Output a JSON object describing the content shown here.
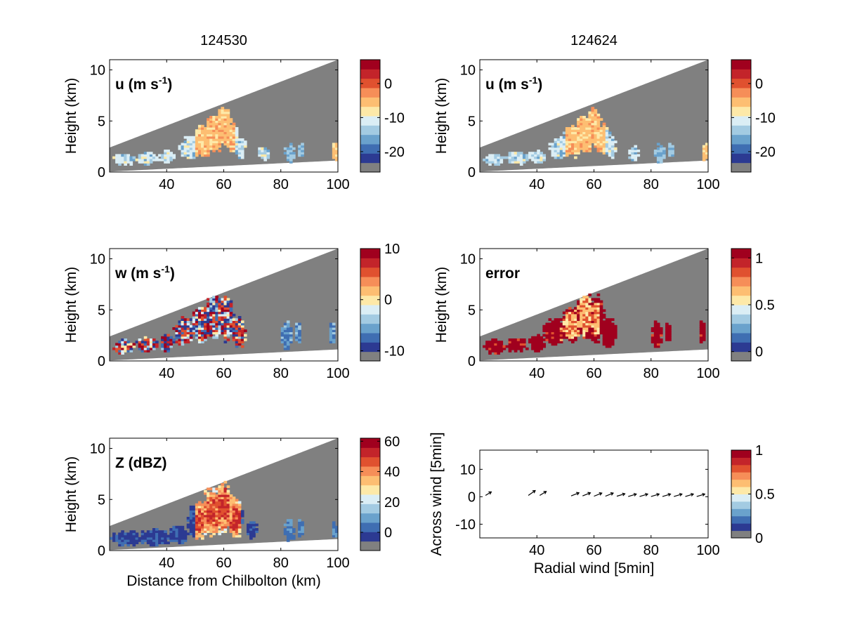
{
  "colors": {
    "masked": "#808080",
    "colormap": [
      "#2c3a92",
      "#3f6eb2",
      "#6aa2cc",
      "#a3cbe2",
      "#dbeef5",
      "#fde9a8",
      "#fdbe72",
      "#f68e58",
      "#e0512f",
      "#c3242a",
      "#a0001e"
    ]
  },
  "chart_data": [
    {
      "id": "u1",
      "type": "heatmap",
      "panel_label": "u (m s",
      "panel_label_sup": "-1",
      "panel_label_tail": ")",
      "column_title": "124530",
      "xlabel": "",
      "ylabel": "Height (km)",
      "xlim": [
        20,
        100
      ],
      "ylim": [
        0,
        11
      ],
      "xticks": [
        40,
        60,
        80,
        100
      ],
      "yticks": [
        0,
        5,
        10
      ],
      "colorbar": {
        "range": [
          -26,
          7
        ],
        "ticks": [
          0,
          -10,
          -20
        ]
      },
      "echo_blobs": [
        [
          25,
          1.2,
          4,
          0.6
        ],
        [
          33,
          1.4,
          4,
          0.7
        ],
        [
          40,
          1.5,
          3,
          0.7
        ],
        [
          48,
          2.4,
          4,
          1.2
        ],
        [
          53,
          3.1,
          4,
          1.7
        ],
        [
          57,
          3.8,
          4,
          2.1
        ],
        [
          60,
          4.5,
          3,
          2.0
        ],
        [
          63,
          3.3,
          3,
          1.6
        ],
        [
          66,
          2.5,
          2,
          1.2
        ],
        [
          74,
          1.8,
          2,
          0.8
        ],
        [
          83,
          1.8,
          2,
          1.0
        ],
        [
          87,
          2.2,
          1,
          0.8
        ],
        [
          99,
          2.0,
          1,
          1.0
        ]
      ]
    },
    {
      "id": "u2",
      "type": "heatmap",
      "panel_label": "u (m s",
      "panel_label_sup": "-1",
      "panel_label_tail": ")",
      "column_title": "124624",
      "xlabel": "",
      "ylabel": "Height (km)",
      "xlim": [
        20,
        100
      ],
      "ylim": [
        0,
        11
      ],
      "xticks": [
        40,
        60,
        80,
        100
      ],
      "yticks": [
        0,
        5,
        10
      ],
      "colorbar": {
        "range": [
          -26,
          7
        ],
        "ticks": [
          0,
          -10,
          -20
        ]
      },
      "echo_blobs": [
        [
          25,
          1.2,
          4,
          0.6
        ],
        [
          33,
          1.4,
          4,
          0.7
        ],
        [
          40,
          1.5,
          3,
          0.7
        ],
        [
          48,
          2.4,
          4,
          1.2
        ],
        [
          53,
          3.1,
          4,
          1.7
        ],
        [
          57,
          3.8,
          4,
          2.1
        ],
        [
          60,
          4.5,
          3,
          2.0
        ],
        [
          63,
          3.3,
          3,
          1.6
        ],
        [
          66,
          2.5,
          2,
          1.2
        ],
        [
          74,
          1.8,
          2,
          0.8
        ],
        [
          83,
          1.8,
          2,
          1.0
        ],
        [
          87,
          2.2,
          1,
          0.8
        ],
        [
          99,
          2.0,
          1,
          1.0
        ]
      ]
    },
    {
      "id": "w",
      "type": "heatmap",
      "panel_label": "w (m s",
      "panel_label_sup": "-1",
      "panel_label_tail": ")",
      "column_title": "",
      "xlabel": "",
      "ylabel": "Height (km)",
      "xlim": [
        20,
        100
      ],
      "ylim": [
        0,
        11
      ],
      "xticks": [
        40,
        60,
        80,
        100
      ],
      "yticks": [
        0,
        5,
        10
      ],
      "colorbar": {
        "range": [
          -12,
          10
        ],
        "ticks": [
          10,
          0,
          -10
        ]
      },
      "echo_blobs": [
        [
          25,
          1.4,
          4,
          0.8
        ],
        [
          33,
          1.6,
          4,
          0.8
        ],
        [
          40,
          1.8,
          3,
          0.9
        ],
        [
          46,
          2.8,
          4,
          1.5
        ],
        [
          52,
          3.6,
          4,
          2.0
        ],
        [
          57,
          4.5,
          4,
          2.5
        ],
        [
          61,
          4.2,
          3,
          2.5
        ],
        [
          65,
          2.8,
          3,
          1.6
        ],
        [
          82,
          2.5,
          2,
          1.5
        ],
        [
          86,
          2.8,
          1,
          1.2
        ],
        [
          98,
          2.8,
          1,
          1.4
        ]
      ]
    },
    {
      "id": "err",
      "type": "heatmap",
      "panel_label": "error",
      "panel_label_sup": "",
      "panel_label_tail": "",
      "column_title": "",
      "xlabel": "",
      "ylabel": "Height (km)",
      "xlim": [
        20,
        100
      ],
      "ylim": [
        0,
        11
      ],
      "xticks": [
        40,
        60,
        80,
        100
      ],
      "yticks": [
        0,
        5,
        10
      ],
      "colorbar": {
        "range": [
          -0.1,
          1.1
        ],
        "ticks": [
          1,
          0.5,
          0
        ]
      },
      "echo_blobs": [
        [
          25,
          1.4,
          4,
          0.8
        ],
        [
          33,
          1.6,
          4,
          0.8
        ],
        [
          40,
          1.8,
          3,
          0.9
        ],
        [
          46,
          2.8,
          4,
          1.5
        ],
        [
          52,
          3.6,
          4,
          2.0
        ],
        [
          57,
          4.5,
          4,
          2.5
        ],
        [
          61,
          4.2,
          3,
          2.5
        ],
        [
          65,
          2.8,
          3,
          1.6
        ],
        [
          82,
          2.5,
          2,
          1.5
        ],
        [
          86,
          2.8,
          1,
          1.2
        ],
        [
          98,
          2.8,
          1,
          1.4
        ]
      ]
    },
    {
      "id": "z",
      "type": "heatmap",
      "panel_label": "Z (dBZ)",
      "panel_label_sup": "",
      "panel_label_tail": "",
      "column_title": "",
      "xlabel": "Distance from Chilbolton (km)",
      "ylabel": "Height (km)",
      "xlim": [
        20,
        100
      ],
      "ylim": [
        0,
        11
      ],
      "xticks": [
        40,
        60,
        80,
        100
      ],
      "yticks": [
        0,
        5,
        10
      ],
      "colorbar": {
        "range": [
          -12,
          62
        ],
        "ticks": [
          60,
          40,
          20,
          0
        ]
      },
      "echo_blobs": [
        [
          26,
          1.2,
          6,
          0.8
        ],
        [
          36,
          1.3,
          6,
          0.9
        ],
        [
          44,
          1.5,
          4,
          1.0
        ],
        [
          51,
          3.0,
          4,
          2.0
        ],
        [
          56,
          3.8,
          4,
          2.6
        ],
        [
          60,
          4.2,
          4,
          2.8
        ],
        [
          64,
          3.2,
          3,
          2.2
        ],
        [
          70,
          2.0,
          2,
          1.0
        ],
        [
          83,
          2.0,
          2,
          1.2
        ],
        [
          87,
          2.2,
          1,
          1.0
        ],
        [
          99,
          2.0,
          1,
          1.0
        ]
      ]
    },
    {
      "id": "arrows",
      "type": "scatter",
      "panel_label": "",
      "panel_label_sup": "",
      "panel_label_tail": "",
      "column_title": "",
      "xlabel": "Radial wind [5min]",
      "ylabel": "Across wind [5min]",
      "xlim": [
        20,
        100
      ],
      "ylim": [
        -15,
        17
      ],
      "xticks": [
        40,
        60,
        80,
        100
      ],
      "yticks": [
        -10,
        0,
        10
      ],
      "colorbar": {
        "range": [
          0,
          1
        ],
        "ticks": [
          1,
          0.5,
          0
        ]
      },
      "vectors": [
        [
          22,
          0.5,
          0.8,
          0.6
        ],
        [
          37,
          0.5,
          1.0,
          0.7
        ],
        [
          41,
          0.5,
          0.9,
          0.6
        ],
        [
          52,
          0.3,
          1.0,
          0.4
        ],
        [
          56,
          0.3,
          1.0,
          0.4
        ],
        [
          60,
          0.2,
          1.0,
          0.4
        ],
        [
          64,
          0.2,
          1.0,
          0.4
        ],
        [
          68,
          0.2,
          1.0,
          0.3
        ],
        [
          72,
          0.1,
          1.0,
          0.3
        ],
        [
          76,
          0.1,
          1.0,
          0.3
        ],
        [
          80,
          0.1,
          1.0,
          0.3
        ],
        [
          84,
          0.1,
          1.0,
          0.3
        ],
        [
          88,
          0.1,
          1.0,
          0.3
        ],
        [
          92,
          0.1,
          1.0,
          0.3
        ],
        [
          96,
          0.1,
          1.0,
          0.3
        ]
      ]
    }
  ]
}
